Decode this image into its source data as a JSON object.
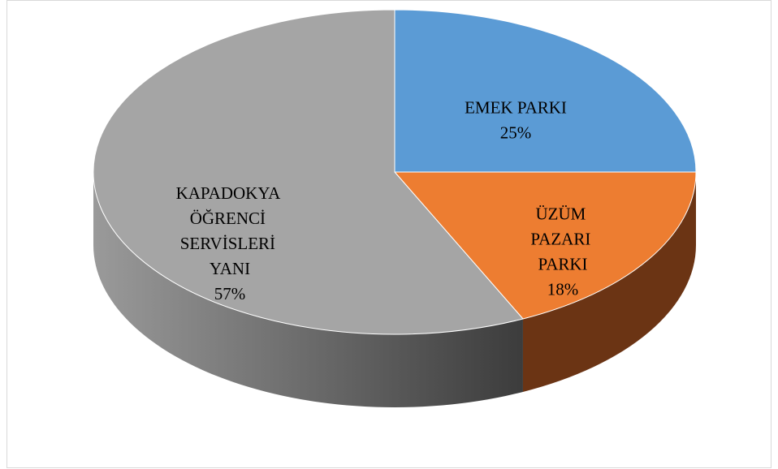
{
  "chart_data": {
    "type": "pie",
    "categories": [
      "EMEK PARKI",
      "ÜZÜM PAZARI PARKI",
      "KAPADOKYA ÖĞRENCİ SERVİSLERİ YANI"
    ],
    "values": [
      25,
      18,
      57
    ],
    "value_labels": [
      "25%",
      "18%",
      "57%"
    ],
    "colors": [
      "#5b9bd5",
      "#ed7d31",
      "#a5a5a5"
    ]
  }
}
